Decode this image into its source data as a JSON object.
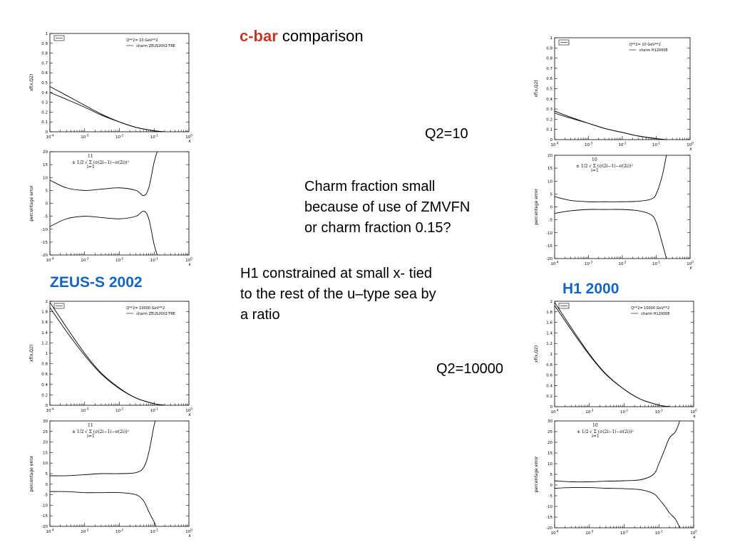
{
  "slide": {
    "title_accent": "c-bar",
    "title_rest": " comparison",
    "q2_low": "Q2=10",
    "charm_note": [
      "Charm fraction small",
      "because of use of ZMVFN",
      "or charm fraction 0.15?"
    ],
    "h1_note": [
      "H1 constrained at small x- tied",
      "to the rest of the u–type sea by",
      "a ratio"
    ],
    "q2_high": "Q2=10000",
    "zeus_label": "ZEUS-S 2002",
    "h1_label": "H1 2000",
    "accent_color": "#c0392b",
    "label_color": "#1565c0"
  },
  "chart_data": [
    {
      "id": "zeus-q10-pdf",
      "type": "line",
      "ylabel": "xf(x,Q2)",
      "xlabel": "x",
      "xscale": "log",
      "xlim": [
        0.0001,
        1
      ],
      "ylim": [
        0,
        1
      ],
      "yticks": [
        0,
        0.1,
        0.2,
        0.3,
        0.4,
        0.5,
        0.6,
        0.7,
        0.8,
        0.9,
        1
      ],
      "legend": {
        "line1": [
          "Q**2=",
          "10",
          "GeV**2"
        ],
        "line2": [
          "charm",
          "ZEUS2002-TRE"
        ]
      },
      "series": [
        {
          "x": [
            0.0001,
            0.0003,
            0.001,
            0.003,
            0.01,
            0.03,
            0.1,
            0.2
          ],
          "values": [
            0.46,
            0.37,
            0.27,
            0.18,
            0.1,
            0.045,
            0.01,
            0.0
          ]
        },
        {
          "x": [
            0.0001,
            0.0003,
            0.001,
            0.003,
            0.01,
            0.03,
            0.1,
            0.2
          ],
          "values": [
            0.4,
            0.33,
            0.25,
            0.17,
            0.1,
            0.045,
            0.01,
            0.0
          ]
        }
      ]
    },
    {
      "id": "zeus-q10-err",
      "type": "line",
      "ylabel": "percentage error",
      "xlabel": "x",
      "xscale": "log",
      "xlim": [
        0.0001,
        1
      ],
      "ylim": [
        -20,
        20
      ],
      "yticks": [
        -20,
        -15,
        -10,
        -5,
        0,
        5,
        10,
        15,
        20
      ],
      "formula": {
        "n": "11",
        "i": "i=1",
        "prefix": "± 1/2",
        "body": "√ Σ (σ(2i−1)−σ(2i))²"
      },
      "series": [
        {
          "x": [
            0.0001,
            0.0003,
            0.001,
            0.003,
            0.01,
            0.03,
            0.05,
            0.07,
            0.1,
            0.13
          ],
          "values": [
            9,
            6,
            5,
            5.5,
            6,
            5,
            3,
            6,
            16,
            21
          ]
        },
        {
          "x": [
            0.0001,
            0.0003,
            0.001,
            0.003,
            0.01,
            0.03,
            0.05,
            0.07,
            0.1,
            0.13
          ],
          "values": [
            -9,
            -6,
            -5,
            -5.5,
            -6,
            -5,
            -3,
            -6,
            -16,
            -21
          ]
        }
      ]
    },
    {
      "id": "h1-q10-pdf",
      "type": "line",
      "ylabel": "xf(x,Q2)",
      "xlabel": "x",
      "xscale": "log",
      "xlim": [
        0.0001,
        1
      ],
      "ylim": [
        0,
        1
      ],
      "yticks": [
        0,
        0.1,
        0.2,
        0.3,
        0.4,
        0.5,
        0.6,
        0.7,
        0.8,
        0.9,
        1
      ],
      "legend": {
        "line1": [
          "Q**2=",
          "10",
          "GeV**2"
        ],
        "line2": [
          "charm",
          "H12000E"
        ]
      },
      "series": [
        {
          "x": [
            0.0001,
            0.0003,
            0.001,
            0.003,
            0.01,
            0.03,
            0.1,
            0.2
          ],
          "values": [
            0.28,
            0.22,
            0.16,
            0.11,
            0.07,
            0.035,
            0.01,
            0.0
          ]
        },
        {
          "x": [
            0.0001,
            0.0003,
            0.001,
            0.003,
            0.01,
            0.03,
            0.1,
            0.2
          ],
          "values": [
            0.26,
            0.21,
            0.16,
            0.11,
            0.07,
            0.035,
            0.01,
            0.0
          ]
        }
      ]
    },
    {
      "id": "h1-q10-err",
      "type": "line",
      "ylabel": "percentage error",
      "xlabel": "x",
      "xscale": "log",
      "xlim": [
        0.0001,
        1
      ],
      "ylim": [
        -20,
        20
      ],
      "yticks": [
        -20,
        -15,
        -10,
        -5,
        0,
        5,
        10,
        15,
        20
      ],
      "formula": {
        "n": "10",
        "i": "i=1",
        "prefix": "± 1/2",
        "body": "√ Σ (σ(2i−1)−σ(2i))²"
      },
      "series": [
        {
          "x": [
            0.0001,
            0.0003,
            0.001,
            0.003,
            0.01,
            0.03,
            0.07,
            0.1,
            0.15,
            0.2
          ],
          "values": [
            4,
            2.5,
            2,
            2,
            2,
            2.2,
            3,
            5,
            12,
            20
          ]
        },
        {
          "x": [
            0.0001,
            0.0003,
            0.001,
            0.003,
            0.01,
            0.03,
            0.07,
            0.1,
            0.15,
            0.2
          ],
          "values": [
            -2.5,
            -1.5,
            -1,
            -1,
            -1,
            -1.5,
            -3,
            -6,
            -14,
            -20
          ]
        }
      ]
    },
    {
      "id": "zeus-q10000-pdf",
      "type": "line",
      "ylabel": "xf(x,Q2)",
      "xlabel": "x",
      "xscale": "log",
      "xlim": [
        0.0001,
        1
      ],
      "ylim": [
        0,
        2
      ],
      "yticks": [
        0,
        0.2,
        0.4,
        0.6,
        0.8,
        1,
        1.2,
        1.4,
        1.6,
        1.8,
        2
      ],
      "legend": {
        "line1": [
          "Q**2=",
          "10000",
          "GeV**2"
        ],
        "line2": [
          "charm",
          "ZEUS2002-TRE"
        ]
      },
      "series": [
        {
          "x": [
            0.0001,
            0.0003,
            0.001,
            0.003,
            0.01,
            0.03,
            0.1,
            0.2
          ],
          "values": [
            1.98,
            1.5,
            1.0,
            0.62,
            0.33,
            0.14,
            0.03,
            0.0
          ]
        },
        {
          "x": [
            0.0001,
            0.0003,
            0.001,
            0.003,
            0.01,
            0.03,
            0.1,
            0.2
          ],
          "values": [
            1.88,
            1.42,
            0.96,
            0.6,
            0.32,
            0.14,
            0.03,
            0.0
          ]
        }
      ]
    },
    {
      "id": "zeus-q10000-err",
      "type": "line",
      "ylabel": "percentage error",
      "xlabel": "x",
      "xscale": "log",
      "xlim": [
        0.0001,
        1
      ],
      "ylim": [
        -20,
        30
      ],
      "yticks": [
        -20,
        -15,
        -10,
        -5,
        0,
        5,
        10,
        15,
        20,
        25,
        30
      ],
      "formula": {
        "n": "11",
        "i": "i=1",
        "prefix": "± 1/2",
        "body": "√ Σ (σ(2i−1)−σ(2i))²"
      },
      "series": [
        {
          "x": [
            0.0001,
            0.0003,
            0.001,
            0.003,
            0.01,
            0.03,
            0.05,
            0.07,
            0.1,
            0.12
          ],
          "values": [
            4,
            4,
            4.5,
            5,
            5,
            5.5,
            8,
            15,
            28,
            32
          ]
        },
        {
          "x": [
            0.0001,
            0.0003,
            0.001,
            0.003,
            0.01,
            0.03,
            0.05,
            0.07,
            0.1,
            0.12
          ],
          "values": [
            -3.5,
            -3.5,
            -4,
            -4,
            -4,
            -5,
            -8,
            -13,
            -18,
            -21
          ]
        }
      ]
    },
    {
      "id": "h1-q10000-pdf",
      "type": "line",
      "ylabel": "xf(x,Q2)",
      "xlabel": "x",
      "xscale": "log",
      "xlim": [
        0.0001,
        1
      ],
      "ylim": [
        0,
        2
      ],
      "yticks": [
        0,
        0.2,
        0.4,
        0.6,
        0.8,
        1,
        1.2,
        1.4,
        1.6,
        1.8,
        2
      ],
      "legend": {
        "line1": [
          "Q**2=",
          "10000",
          "GeV**2"
        ],
        "line2": [
          "charm",
          "H12000E"
        ]
      },
      "series": [
        {
          "x": [
            0.0001,
            0.0003,
            0.001,
            0.003,
            0.01,
            0.03,
            0.1,
            0.2
          ],
          "values": [
            1.98,
            1.5,
            1.0,
            0.62,
            0.33,
            0.14,
            0.03,
            0.0
          ]
        },
        {
          "x": [
            0.0001,
            0.0003,
            0.001,
            0.003,
            0.01,
            0.03,
            0.1,
            0.2
          ],
          "values": [
            1.92,
            1.46,
            0.98,
            0.61,
            0.33,
            0.14,
            0.03,
            0.0
          ]
        }
      ]
    },
    {
      "id": "h1-q10000-err",
      "type": "line",
      "ylabel": "percentage error",
      "xlabel": "x",
      "xscale": "log",
      "xlim": [
        0.0001,
        1
      ],
      "ylim": [
        -20,
        30
      ],
      "yticks": [
        -20,
        -15,
        -10,
        -5,
        0,
        5,
        10,
        15,
        20,
        25,
        30
      ],
      "formula": {
        "n": "10",
        "i": "i=1",
        "prefix": "± 1/2",
        "body": "√ Σ (σ(2i−1)−σ(2i))²"
      },
      "series": [
        {
          "x": [
            0.0001,
            0.0003,
            0.001,
            0.003,
            0.01,
            0.03,
            0.07,
            0.1,
            0.15,
            0.2,
            0.3,
            0.4
          ],
          "values": [
            2,
            1.5,
            1.5,
            1.8,
            2,
            2.5,
            5,
            10,
            17,
            22,
            25,
            30
          ]
        },
        {
          "x": [
            0.0001,
            0.0003,
            0.001,
            0.003,
            0.01,
            0.03,
            0.07,
            0.1,
            0.15,
            0.2,
            0.3,
            0.4
          ],
          "values": [
            -1.5,
            -1.2,
            -1.2,
            -1.5,
            -1.7,
            -2.2,
            -4,
            -6.5,
            -10,
            -13,
            -16,
            -20
          ]
        }
      ]
    }
  ]
}
